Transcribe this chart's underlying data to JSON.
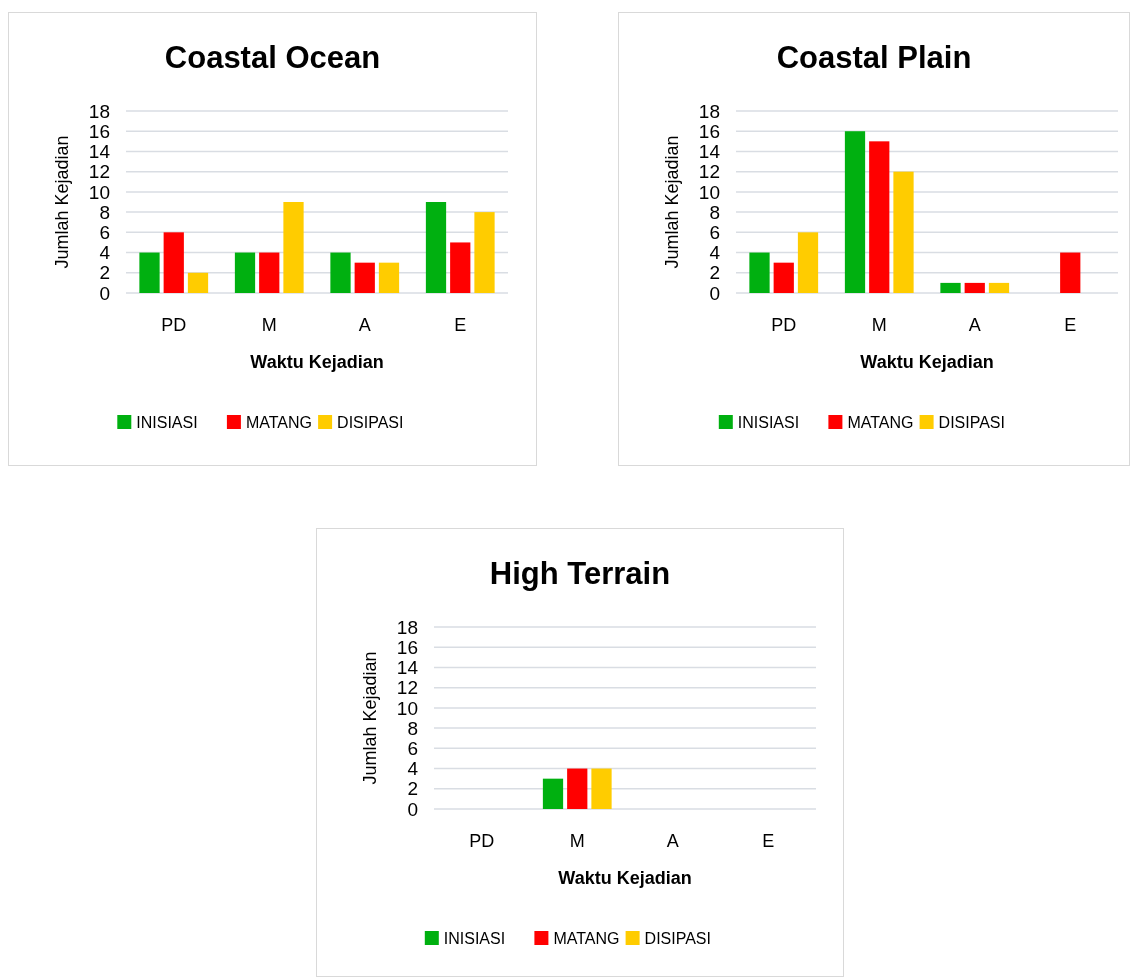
{
  "chart_data": [
    {
      "type": "bar",
      "title": "Coastal Ocean",
      "xlabel": "Waktu Kejadian",
      "ylabel": "Jumlah Kejadian",
      "categories": [
        "PD",
        "M",
        "A",
        "E"
      ],
      "ylim": [
        0,
        18
      ],
      "yticks": [
        0,
        2,
        4,
        6,
        8,
        10,
        12,
        14,
        16,
        18
      ],
      "grid": "y",
      "legend": "bottom",
      "series": [
        {
          "name": "INISIASI",
          "color": "#00b010",
          "values": [
            4,
            4,
            4,
            9
          ]
        },
        {
          "name": "MATANG",
          "color": "#ff0000",
          "values": [
            6,
            4,
            3,
            5
          ]
        },
        {
          "name": "DISIPASI",
          "color": "#ffcc00",
          "values": [
            2,
            9,
            3,
            8
          ]
        }
      ]
    },
    {
      "type": "bar",
      "title": "Coastal Plain",
      "xlabel": "Waktu Kejadian",
      "ylabel": "Jumlah Kejadian",
      "categories": [
        "PD",
        "M",
        "A",
        "E"
      ],
      "ylim": [
        0,
        18
      ],
      "yticks": [
        0,
        2,
        4,
        6,
        8,
        10,
        12,
        14,
        16,
        18
      ],
      "grid": "y",
      "legend": "bottom",
      "series": [
        {
          "name": "INISIASI",
          "color": "#00b010",
          "values": [
            4,
            16,
            1,
            0
          ]
        },
        {
          "name": "MATANG",
          "color": "#ff0000",
          "values": [
            3,
            15,
            1,
            4
          ]
        },
        {
          "name": "DISIPASI",
          "color": "#ffcc00",
          "values": [
            6,
            12,
            1,
            0
          ]
        }
      ]
    },
    {
      "type": "bar",
      "title": "High Terrain",
      "xlabel": "Waktu Kejadian",
      "ylabel": "Jumlah Kejadian",
      "categories": [
        "PD",
        "M",
        "A",
        "E"
      ],
      "ylim": [
        0,
        18
      ],
      "yticks": [
        0,
        2,
        4,
        6,
        8,
        10,
        12,
        14,
        16,
        18
      ],
      "grid": "y",
      "legend": "bottom",
      "series": [
        {
          "name": "INISIASI",
          "color": "#00b010",
          "values": [
            0,
            3,
            0,
            0
          ]
        },
        {
          "name": "MATANG",
          "color": "#ff0000",
          "values": [
            0,
            4,
            0,
            0
          ]
        },
        {
          "name": "DISIPASI",
          "color": "#ffcc00",
          "values": [
            0,
            4,
            0,
            0
          ]
        }
      ]
    }
  ]
}
